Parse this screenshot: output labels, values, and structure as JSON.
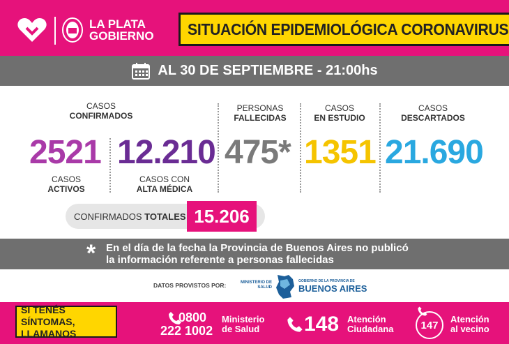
{
  "header": {
    "logo_line1": "LA PLATA",
    "logo_line2": "GOBIERNO",
    "banner_title": "SITUACIÓN EPIDEMIOLÓGICA CORONAVIRUS",
    "icons": [
      "heart-icon",
      "seal-icon"
    ]
  },
  "date_bar": {
    "text": "AL 30 DE SEPTIEMBRE - 21:00hs",
    "icon": "calendar-icon"
  },
  "stats": {
    "confirmed_label_1": "CASOS",
    "confirmed_label_2": "CONFIRMADOS",
    "active_value": "2521",
    "active_label_1": "CASOS",
    "active_label_2": "ACTIVOS",
    "discharged_value": "12.210",
    "discharged_label_1": "CASOS CON",
    "discharged_label_2": "ALTA MÉDICA",
    "deaths_label_1": "PERSONAS",
    "deaths_label_2": "FALLECIDAS",
    "deaths_value": "475*",
    "study_label_1": "CASOS",
    "study_label_2": "EN ESTUDIO",
    "study_value": "1351",
    "discarded_label_1": "CASOS",
    "discarded_label_2": "DESCARTADOS",
    "discarded_value": "21.690"
  },
  "totals": {
    "label_normal": "CONFIRMADOS",
    "label_bold": "TOTALES",
    "value": "15.206"
  },
  "note": {
    "star": "*",
    "line1": "En el día de la fecha la Provincia de Buenos Aires no publicó",
    "line2": "la información referente a personas fallecidas"
  },
  "source": {
    "label": "DATOS PROVISTOS POR:",
    "ministry_line1": "MINISTERIO DE",
    "ministry_line2": "SALUD",
    "province_small": "GOBIERNO DE LA PROVINCIA DE",
    "province_big": "BUENOS AIRES"
  },
  "footer": {
    "cta_line1": "SI TENÉS SÍNTOMAS,",
    "cta_line2": "LLAMANOS",
    "phone1_line1": "0800",
    "phone1_line2": "222 1002",
    "phone1_label_1": "Ministerio",
    "phone1_label_2": "de Salud",
    "phone2_number": "148",
    "phone2_label_1": "Atención",
    "phone2_label_2": "Ciudadana",
    "phone3_number": "147",
    "phone3_label_1": "Atención",
    "phone3_label_2": "al vecino"
  },
  "colors": {
    "brand_pink": "#e6127b",
    "banner_yellow": "#ffd600",
    "bar_gray": "#6f6f6f",
    "active_purple": "#a93aa8",
    "discharged_violet": "#6a2c94",
    "deaths_gray": "#7a7a7a",
    "study_yellow": "#f5c400",
    "discarded_blue": "#2aa8e0"
  }
}
